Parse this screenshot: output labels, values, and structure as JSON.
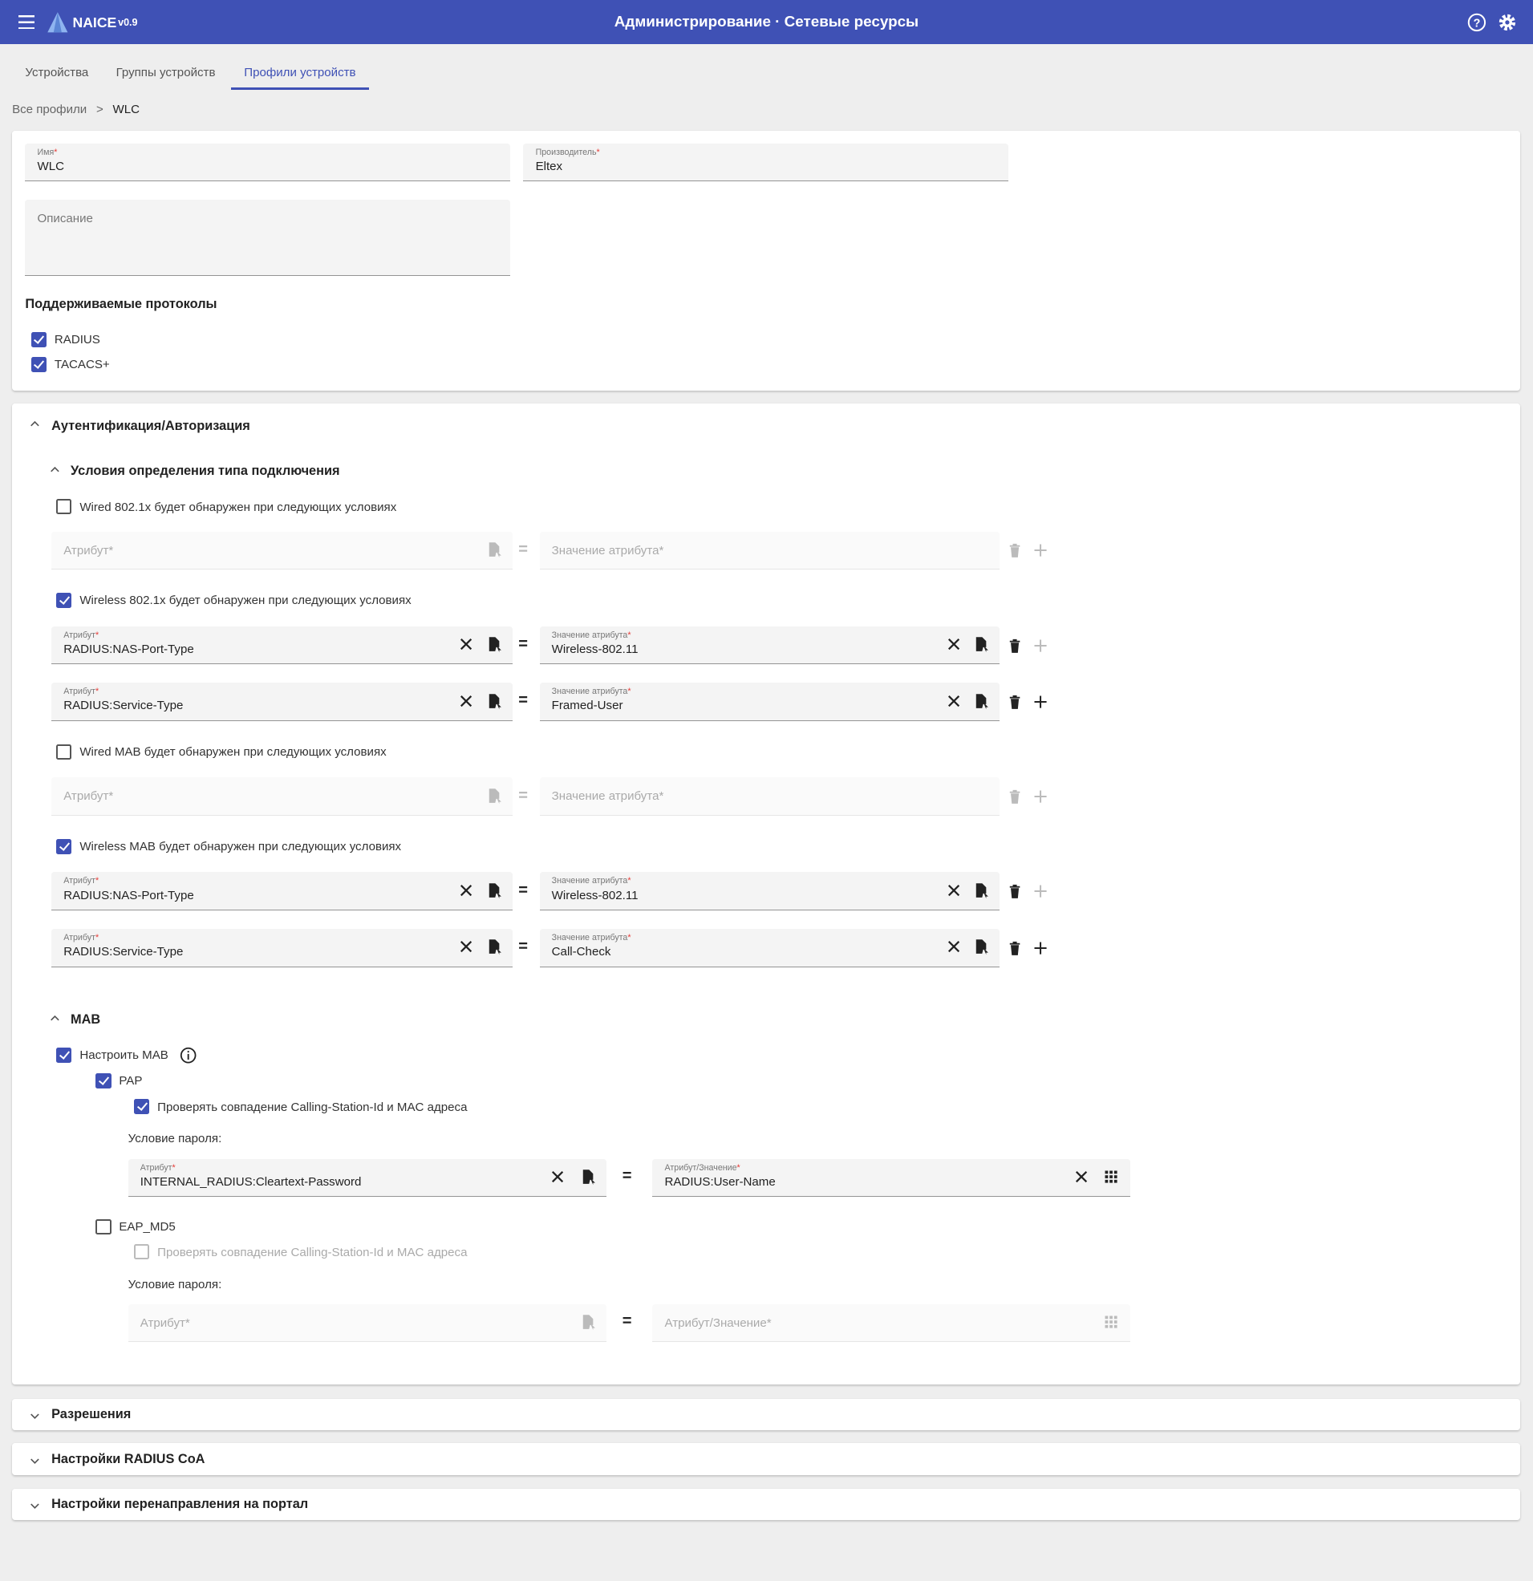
{
  "header": {
    "menu_icon": "menu-icon",
    "logo": "NAICE",
    "version": "v0.9",
    "title": "Администрирование · Сетевые ресурсы",
    "help_icon": "help-circle-icon",
    "settings_icon": "gear-icon",
    "color": "#3f51b5"
  },
  "tabs": [
    {
      "label": "Устройства"
    },
    {
      "label": "Группы устройств"
    },
    {
      "label": "Профили устройств",
      "active": true
    }
  ],
  "breadcrumb": {
    "root": "Все профили",
    "sep": ">",
    "current": "WLC"
  },
  "profile": {
    "name": {
      "label": "Имя",
      "value": "WLC"
    },
    "vendor": {
      "label": "Производитель",
      "value": "Eltex"
    },
    "description": {
      "placeholder": "Описание",
      "value": ""
    },
    "protocols_title": "Поддерживаемые протоколы",
    "protocols": [
      {
        "label": "RADIUS",
        "checked": true
      },
      {
        "label": "TACACS+",
        "checked": true
      }
    ]
  },
  "auth": {
    "title": "Аутентификация/Авторизация",
    "conditions_title": "Условия определения типа подключения",
    "attr_label": "Атрибут",
    "value_label": "Значение атрибута",
    "attr_placeholder": "Атрибут*",
    "value_placeholder": "Значение атрибута*",
    "eq": "=",
    "groups": [
      {
        "label": "Wired 802.1x будет обнаружен при следующих условиях",
        "checked": false,
        "rows": [
          {
            "attribute": "",
            "value": ""
          }
        ]
      },
      {
        "label": "Wireless 802.1x будет обнаружен при следующих условиях",
        "checked": true,
        "rows": [
          {
            "attribute": "RADIUS:NAS-Port-Type",
            "value": "Wireless-802.11"
          },
          {
            "attribute": "RADIUS:Service-Type",
            "value": "Framed-User"
          }
        ]
      },
      {
        "label": "Wired MAB будет обнаружен при следующих условиях",
        "checked": false,
        "rows": [
          {
            "attribute": "",
            "value": ""
          }
        ]
      },
      {
        "label": "Wireless MAB будет обнаружен при следующих условиях",
        "checked": true,
        "rows": [
          {
            "attribute": "RADIUS:NAS-Port-Type",
            "value": "Wireless-802.11"
          },
          {
            "attribute": "RADIUS:Service-Type",
            "value": "Call-Check"
          }
        ]
      }
    ],
    "mab": {
      "title": "MAB",
      "configure": {
        "label": "Настроить MAB",
        "checked": true
      },
      "pap": {
        "label": "PAP",
        "checked": true,
        "check_label": "Проверять совпадение Calling-Station-Id и MAC адреса",
        "check_checked": true,
        "password_label": "Условие пароля:",
        "attr_label": "Атрибут",
        "attribute": "INTERNAL_RADIUS:Cleartext-Password",
        "value_label": "Атрибут/Значение",
        "value": "RADIUS:User-Name"
      },
      "eap_md5": {
        "label": "EAP_MD5",
        "checked": false,
        "check_label": "Проверять совпадение Calling-Station-Id и MAC адреса",
        "check_checked": false,
        "password_label": "Условие пароля:",
        "attr_placeholder": "Атрибут*",
        "value_placeholder": "Атрибут/Значение*"
      }
    }
  },
  "sections": [
    {
      "title": "Разрешения",
      "expanded": false
    },
    {
      "title": "Настройки RADIUS CoA",
      "expanded": false
    },
    {
      "title": "Настройки перенаправления на портал",
      "expanded": false
    }
  ]
}
